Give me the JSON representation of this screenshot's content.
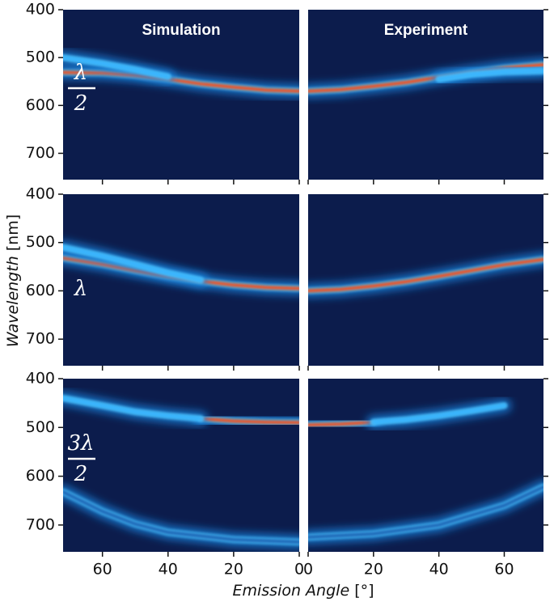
{
  "figure": {
    "y_label": {
      "italic": "Wavelength",
      "unit": "[nm]"
    },
    "x_label": {
      "italic": "Emission Angle",
      "unit": "[°]"
    }
  },
  "chart_data": [
    {
      "type": "line",
      "title": "Simulation",
      "row_label": {
        "numerator": "λ",
        "denominator": "2"
      },
      "xlim": [
        72,
        0
      ],
      "ylim": [
        400,
        755
      ],
      "xticks": [
        0,
        20,
        40,
        60
      ],
      "yticks": [
        400,
        500,
        600,
        700
      ],
      "series": [
        {
          "color": "#ff4a10",
          "x": [
            0,
            10,
            20,
            30,
            40,
            50,
            60,
            72
          ],
          "values": [
            570,
            568,
            562,
            555,
            545,
            537,
            532,
            531
          ]
        },
        {
          "color": "#39b4ff",
          "x": [
            40,
            50,
            60,
            72
          ],
          "values": [
            540,
            525,
            512,
            500
          ]
        }
      ]
    },
    {
      "type": "line",
      "title": "Experiment",
      "xlim": [
        0,
        72
      ],
      "ylim": [
        400,
        755
      ],
      "xticks": [
        0,
        20,
        40,
        60
      ],
      "yticks": [
        400,
        500,
        600,
        700
      ],
      "series": [
        {
          "color": "#ff4a10",
          "x": [
            0,
            10,
            20,
            30,
            40,
            50,
            60,
            72
          ],
          "values": [
            570,
            567,
            560,
            552,
            541,
            531,
            522,
            515
          ]
        },
        {
          "color": "#39b4ff",
          "x": [
            40,
            50,
            60,
            72
          ],
          "values": [
            545,
            535,
            530,
            528
          ]
        }
      ]
    },
    {
      "type": "line",
      "row_label": {
        "numerator": "λ"
      },
      "xlim": [
        72,
        0
      ],
      "ylim": [
        400,
        755
      ],
      "xticks": [
        0,
        20,
        40,
        60
      ],
      "yticks": [
        400,
        500,
        600,
        700
      ],
      "series": [
        {
          "color": "#ff4a10",
          "x": [
            0,
            10,
            20,
            30,
            40,
            50,
            60,
            72
          ],
          "values": [
            595,
            593,
            588,
            580,
            570,
            558,
            545,
            532
          ]
        },
        {
          "color": "#39b4ff",
          "x": [
            30,
            40,
            50,
            60,
            72
          ],
          "values": [
            578,
            563,
            545,
            528,
            510
          ]
        }
      ]
    },
    {
      "type": "line",
      "xlim": [
        0,
        72
      ],
      "ylim": [
        400,
        755
      ],
      "xticks": [
        0,
        20,
        40,
        60
      ],
      "yticks": [
        400,
        500,
        600,
        700
      ],
      "series": [
        {
          "color": "#ff4a10",
          "x": [
            0,
            10,
            20,
            30,
            40,
            50,
            60,
            72
          ],
          "values": [
            600,
            597,
            590,
            581,
            570,
            558,
            546,
            535
          ]
        }
      ]
    },
    {
      "type": "line",
      "row_label": {
        "numerator": "3λ",
        "denominator": "2"
      },
      "xlim": [
        72,
        0
      ],
      "ylim": [
        400,
        755
      ],
      "xticks": [
        0,
        20,
        40,
        60
      ],
      "yticks": [
        400,
        500,
        600,
        700
      ],
      "series": [
        {
          "color": "#ff4a10",
          "x": [
            0,
            10,
            20,
            30
          ],
          "values": [
            490,
            489,
            487,
            482
          ]
        },
        {
          "color": "#39b4ff",
          "x": [
            30,
            40,
            50,
            60,
            72
          ],
          "values": [
            482,
            476,
            468,
            455,
            440
          ]
        },
        {
          "color": "#1e5fb0",
          "x": [
            0,
            20,
            40,
            50,
            60,
            72
          ],
          "values": [
            735,
            730,
            715,
            698,
            672,
            632
          ]
        }
      ]
    },
    {
      "type": "line",
      "xlim": [
        0,
        72
      ],
      "ylim": [
        400,
        755
      ],
      "xticks": [
        0,
        20,
        40,
        60
      ],
      "yticks": [
        400,
        500,
        600,
        700
      ],
      "series": [
        {
          "color": "#ff4a10",
          "x": [
            0,
            10,
            20
          ],
          "values": [
            495,
            493,
            489
          ]
        },
        {
          "color": "#39b4ff",
          "x": [
            20,
            30,
            40,
            50,
            60
          ],
          "values": [
            489,
            484,
            476,
            466,
            455
          ]
        },
        {
          "color": "#1e5fb0",
          "x": [
            0,
            20,
            40,
            60,
            72
          ],
          "values": [
            725,
            718,
            700,
            660,
            622
          ]
        }
      ]
    }
  ]
}
